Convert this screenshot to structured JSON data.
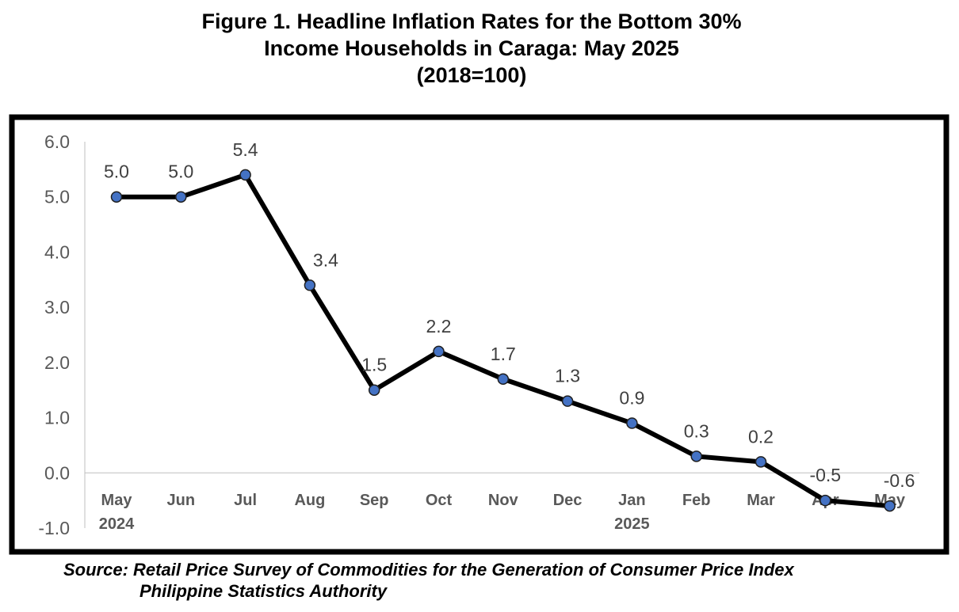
{
  "title": {
    "line1": "Figure 1. Headline Inflation Rates for the Bottom 30%",
    "line2": "Income Households in Caraga: May 2025",
    "line3": "(2018=100)"
  },
  "source": {
    "line1": "Source: Retail Price Survey of Commodities for the Generation of Consumer Price Index",
    "line2": "Philippine Statistics Authority"
  },
  "chart_data": {
    "type": "line",
    "categories": [
      "May",
      "Jun",
      "Jul",
      "Aug",
      "Sep",
      "Oct",
      "Nov",
      "Dec",
      "Jan",
      "Feb",
      "Mar",
      "Apr",
      "May"
    ],
    "year_labels": [
      "2024",
      "",
      "",
      "",
      "",
      "",
      "",
      "",
      "2025",
      "",
      "",
      "",
      ""
    ],
    "values": [
      5.0,
      5.0,
      5.4,
      3.4,
      1.5,
      2.2,
      1.7,
      1.3,
      0.9,
      0.3,
      0.2,
      -0.5,
      -0.6
    ],
    "data_labels": [
      "5.0",
      "5.0",
      "5.4",
      "3.4",
      "1.5",
      "2.2",
      "1.7",
      "1.3",
      "0.9",
      "0.3",
      "0.2",
      "-0.5",
      "-0.6"
    ],
    "y_ticks": [
      "6.0",
      "5.0",
      "4.0",
      "3.0",
      "2.0",
      "1.0",
      "0.0",
      "-1.0"
    ],
    "ylim": [
      -1.0,
      6.0
    ],
    "grid": false,
    "legend": "none",
    "line_color": "#000000",
    "marker_color": "#4472C4"
  }
}
